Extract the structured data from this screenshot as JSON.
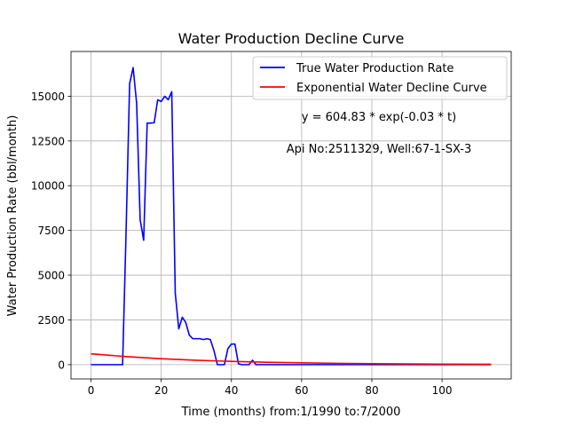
{
  "chart_data": {
    "type": "line",
    "title": "Water Production Decline Curve",
    "xlabel": "Time (months) from:1/1990 to:7/2000",
    "ylabel": "Water Production Rate (bbl/month)",
    "xlim": [
      -5.7,
      119.7
    ],
    "ylim": [
      -800,
      17500
    ],
    "xticks": [
      0,
      20,
      40,
      60,
      80,
      100
    ],
    "yticks": [
      0,
      2500,
      5000,
      7500,
      10000,
      12500,
      15000
    ],
    "grid": true,
    "legend_position": "upper-right",
    "annotations": [
      "y = 604.83 * exp(-0.03 * t)",
      "Api No:2511329, Well:67-1-SX-3"
    ],
    "series": [
      {
        "name": "True Water Production Rate",
        "color": "#0000ff",
        "x": [
          0,
          1,
          2,
          3,
          4,
          5,
          6,
          7,
          8,
          9,
          10,
          11,
          12,
          13,
          14,
          15,
          16,
          17,
          18,
          19,
          20,
          21,
          22,
          23,
          24,
          25,
          26,
          27,
          28,
          29,
          30,
          31,
          32,
          33,
          34,
          35,
          36,
          37,
          38,
          39,
          40,
          41,
          42,
          43,
          44,
          45,
          46,
          47,
          48,
          114
        ],
        "y": [
          0,
          0,
          0,
          0,
          0,
          0,
          0,
          0,
          0,
          0,
          7500,
          15700,
          16600,
          14600,
          8100,
          6950,
          13500,
          13500,
          13520,
          14800,
          14700,
          15000,
          14800,
          15250,
          4000,
          2000,
          2650,
          2350,
          1650,
          1450,
          1450,
          1450,
          1400,
          1450,
          1400,
          800,
          0,
          0,
          0,
          900,
          1150,
          1150,
          50,
          0,
          0,
          0,
          250,
          0,
          0,
          0
        ]
      },
      {
        "name": "Exponential Water Decline Curve",
        "color": "#ff0000",
        "x": [
          0,
          10,
          20,
          30,
          40,
          50,
          60,
          70,
          80,
          90,
          100,
          110,
          114
        ],
        "y": [
          604.83,
          448.1,
          331.9,
          245.9,
          182.2,
          135.0,
          100.0,
          74.1,
          54.9,
          40.7,
          30.1,
          22.3,
          19.8
        ]
      }
    ]
  }
}
